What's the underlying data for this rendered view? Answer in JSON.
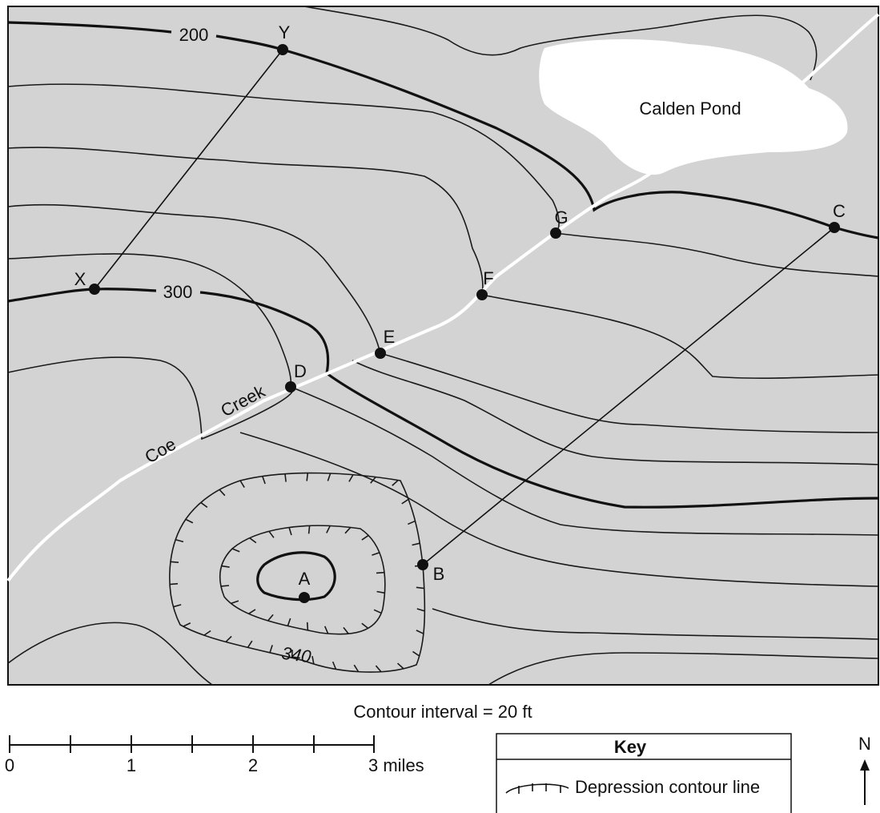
{
  "map": {
    "contour_labels": {
      "c200": "200",
      "c300": "300",
      "c340": "340"
    },
    "points": {
      "Y": "Y",
      "X": "X",
      "G": "G",
      "F": "F",
      "E": "E",
      "D": "D",
      "C": "C",
      "B": "B",
      "A": "A"
    },
    "pond": "Calden Pond",
    "creek": [
      "Coe",
      "Creek"
    ]
  },
  "contour_interval": "Contour interval = 20 ft",
  "scale": {
    "labels": [
      "0",
      "1",
      "2",
      "3 miles"
    ]
  },
  "key": {
    "title": "Key",
    "entry": "Depression contour line"
  },
  "north": "N"
}
